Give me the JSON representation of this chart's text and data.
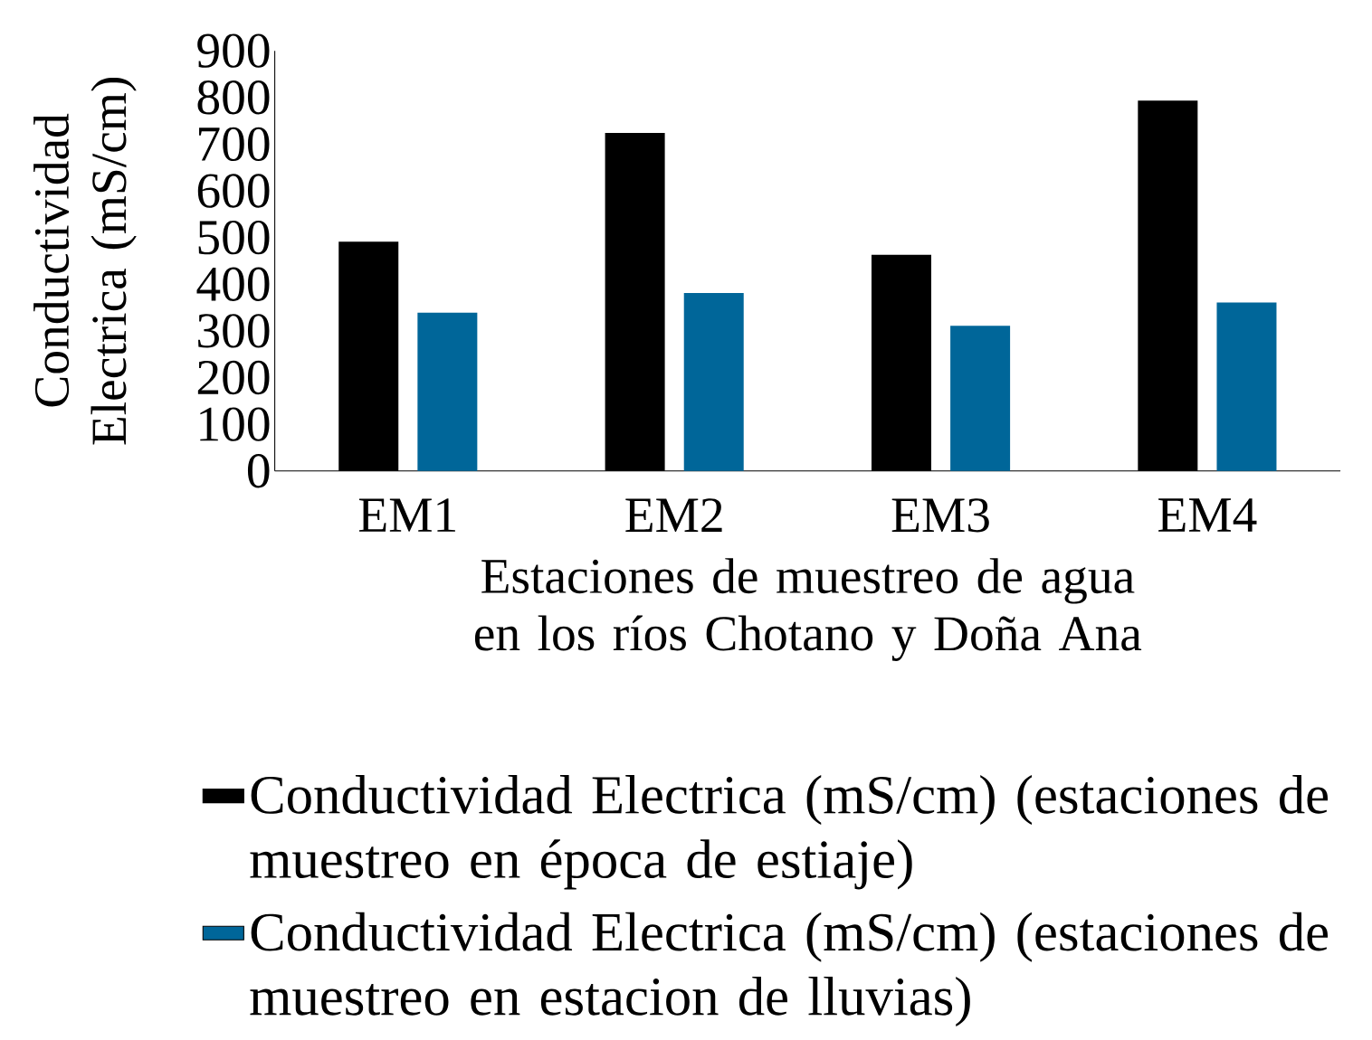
{
  "chart_data": {
    "type": "bar",
    "categories": [
      "EM1",
      "EM2",
      "EM3",
      "EM4"
    ],
    "xlabel": "Estaciones de muestreo de agua en los ríos Chotano y Doña Ana",
    "ylabel": "Conductividad Electrica (mS/cm)",
    "ylim": [
      0,
      900
    ],
    "yticks": [
      0,
      100,
      200,
      300,
      400,
      500,
      600,
      700,
      800,
      900
    ],
    "series": [
      {
        "name": "Conductividad Electrica (mS/cm) (estaciones de muestreo en  época de estiaje)",
        "color": "#000000",
        "values": [
          491,
          724,
          463,
          793
        ]
      },
      {
        "name": "Conductividad Electrica (mS/cm) (estaciones de muestreo en  estacion de lluvias)",
        "color": "#006699",
        "values": [
          339,
          381,
          311,
          361
        ]
      }
    ],
    "grid": false,
    "legend": "bottom"
  }
}
